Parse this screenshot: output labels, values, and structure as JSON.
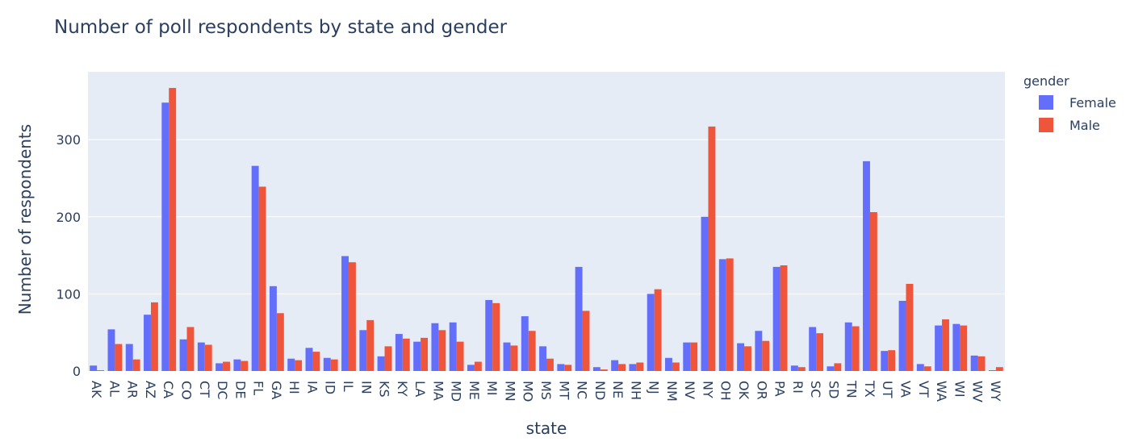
{
  "chart_data": {
    "type": "bar",
    "title": "Number of poll respondents by state and gender",
    "xlabel": "state",
    "ylabel": "Number of respondents",
    "ylim": [
      0,
      388
    ],
    "yticks": [
      0,
      100,
      200,
      300
    ],
    "grid": true,
    "legend_title": "gender",
    "legend_position": "right",
    "categories": [
      "AK",
      "AL",
      "AR",
      "AZ",
      "CA",
      "CO",
      "CT",
      "DC",
      "DE",
      "FL",
      "GA",
      "HI",
      "IA",
      "ID",
      "IL",
      "IN",
      "KS",
      "KY",
      "LA",
      "MA",
      "MD",
      "ME",
      "MI",
      "MN",
      "MO",
      "MS",
      "MT",
      "NC",
      "ND",
      "NE",
      "NH",
      "NJ",
      "NM",
      "NV",
      "NY",
      "OH",
      "OK",
      "OR",
      "PA",
      "RI",
      "SC",
      "SD",
      "TN",
      "TX",
      "UT",
      "VA",
      "VT",
      "WA",
      "WI",
      "WV",
      "WY"
    ],
    "series": [
      {
        "name": "Female",
        "color": "#636efa",
        "values": [
          7,
          54,
          35,
          73,
          348,
          41,
          37,
          10,
          15,
          266,
          110,
          16,
          30,
          17,
          149,
          53,
          19,
          48,
          38,
          62,
          63,
          8,
          92,
          37,
          71,
          32,
          9,
          135,
          5,
          14,
          9,
          100,
          17,
          37,
          200,
          145,
          36,
          52,
          135,
          7,
          57,
          6,
          63,
          272,
          26,
          91,
          9,
          59,
          61,
          20,
          1
        ]
      },
      {
        "name": "Male",
        "color": "#ef553b",
        "values": [
          1,
          35,
          15,
          89,
          367,
          57,
          34,
          12,
          13,
          239,
          75,
          14,
          25,
          15,
          141,
          66,
          32,
          42,
          43,
          53,
          38,
          12,
          88,
          33,
          52,
          16,
          8,
          78,
          2,
          9,
          11,
          106,
          11,
          37,
          317,
          146,
          32,
          39,
          137,
          5,
          49,
          10,
          58,
          206,
          27,
          113,
          6,
          67,
          59,
          19,
          5
        ]
      }
    ]
  }
}
